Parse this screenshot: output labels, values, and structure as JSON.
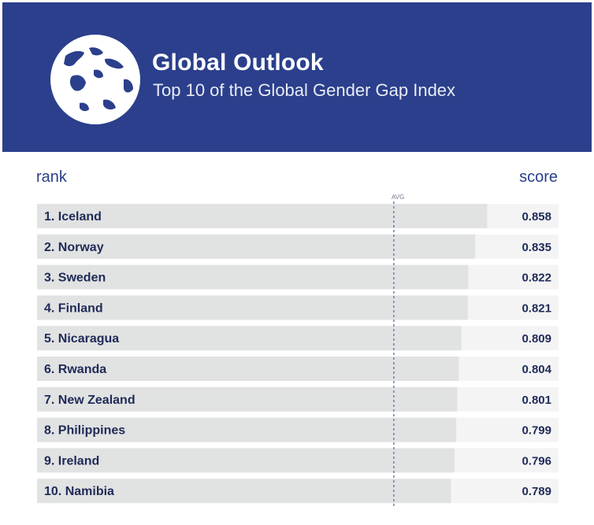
{
  "header": {
    "title": "Global Outlook",
    "subtitle": "Top 10 of the Global Gender Gap Index"
  },
  "columns": {
    "left": "rank",
    "right": "score"
  },
  "avg_marker_label": "AVG",
  "colors": {
    "header_bg": "#2b3f8c",
    "bar_fill": "#e1e2e2",
    "row_bg": "#f4f4f5",
    "label_text": "#1f2b57",
    "avg_line": "#6b7fb5"
  },
  "chart_data": {
    "type": "bar",
    "orientation": "horizontal",
    "title": "Top 10 of the Global Gender Gap Index",
    "categories": [
      "1. Iceland",
      "2. Norway",
      "3. Sweden",
      "4. Finland",
      "5. Nicaragua",
      "6. Rwanda",
      "7. New Zealand",
      "8. Philippines",
      "9. Ireland",
      "10. Namibia"
    ],
    "values": [
      0.858,
      0.835,
      0.822,
      0.821,
      0.809,
      0.804,
      0.801,
      0.799,
      0.796,
      0.789
    ],
    "value_labels": [
      "0.858",
      "0.835",
      "0.822",
      "0.821",
      "0.809",
      "0.804",
      "0.801",
      "0.799",
      "0.796",
      "0.789"
    ],
    "avg": 0.68,
    "xlim": [
      0,
      1
    ],
    "grid": false,
    "legend": "none"
  }
}
